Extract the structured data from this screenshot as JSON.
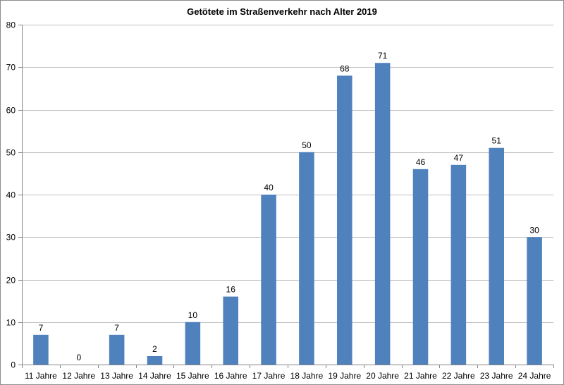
{
  "chart_data": {
    "type": "bar",
    "title": "Getötete im Straßenverkehr nach Alter 2019",
    "xlabel": "",
    "ylabel": "",
    "categories": [
      "11 Jahre",
      "12 Jahre",
      "13 Jahre",
      "14 Jahre",
      "15 Jahre",
      "16 Jahre",
      "17 Jahre",
      "18 Jahre",
      "19 Jahre",
      "20 Jahre",
      "21 Jahre",
      "22 Jahre",
      "23 Jahre",
      "24 Jahre"
    ],
    "values": [
      7,
      0,
      7,
      2,
      10,
      16,
      40,
      50,
      68,
      71,
      46,
      47,
      51,
      30
    ],
    "ylim": [
      0,
      80
    ],
    "yticks": [
      0,
      10,
      20,
      30,
      40,
      50,
      60,
      70,
      80
    ],
    "grid": true,
    "legend": "none",
    "data_labels": true,
    "colors": {
      "bar": "#4f81bd",
      "grid": "#bfbfbf",
      "axis": "#868686"
    }
  }
}
